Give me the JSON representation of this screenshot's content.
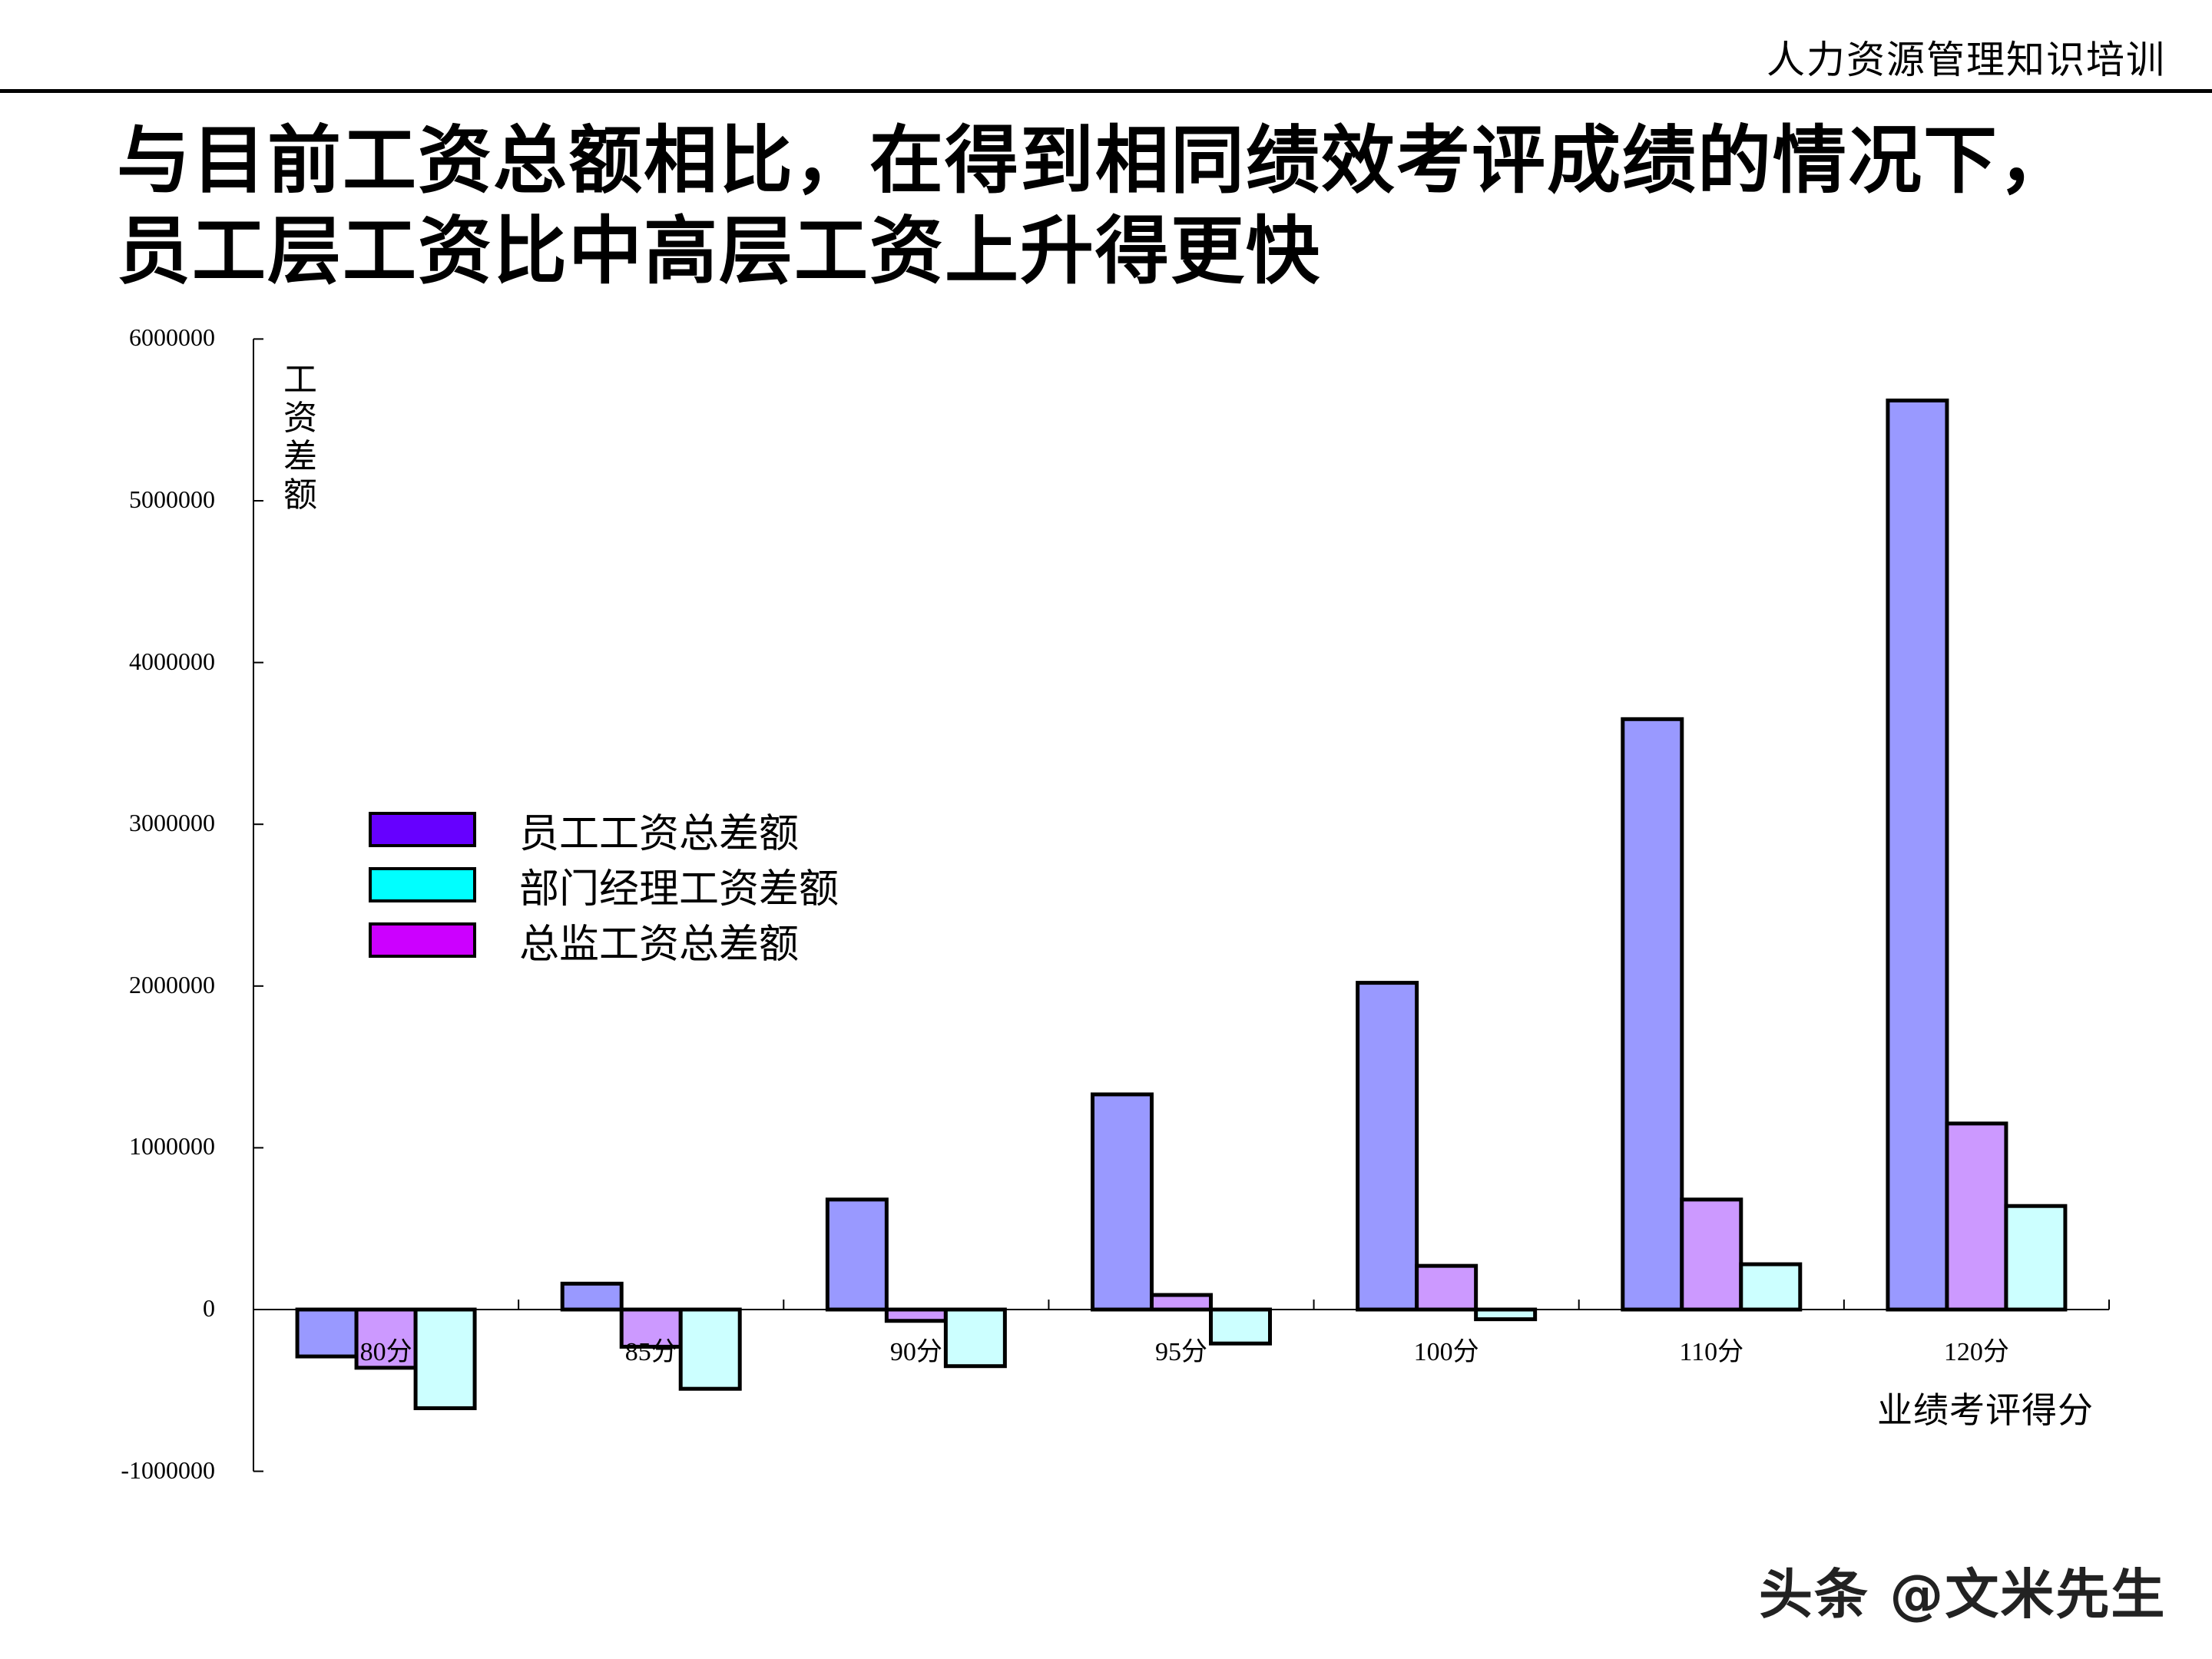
{
  "header": {
    "title": "人力资源管理知识培训"
  },
  "slide": {
    "title_line1": "与目前工资总额相比，在得到相同绩效考评成绩的情况下，",
    "title_line2": "员工层工资比中高层工资上升得更快"
  },
  "watermark": "头条 @文米先生",
  "chart_data": {
    "type": "bar",
    "title": "",
    "xlabel": "业绩考评得分",
    "ylabel": "工资差额",
    "categories": [
      "80分",
      "85分",
      "90分",
      "95分",
      "100分",
      "110分",
      "120分"
    ],
    "series": [
      {
        "name": "员工工资总差额",
        "legend_color": "#6600ff",
        "bar_color": "#9999ff",
        "values": [
          -290000,
          160000,
          680000,
          1330000,
          2020000,
          3650000,
          5620000
        ]
      },
      {
        "name": "总监工资总差额",
        "legend_color": "#cc00ff",
        "bar_color": "#cc99ff",
        "values": [
          -360000,
          -230000,
          -70000,
          90000,
          270000,
          680000,
          1150000
        ]
      },
      {
        "name": "部门经理工资差额",
        "legend_color": "#00ffff",
        "bar_color": "#ccffff",
        "values": [
          -610000,
          -490000,
          -350000,
          -210000,
          -60000,
          280000,
          640000
        ]
      }
    ],
    "legend_order": [
      "员工工资总差额",
      "部门经理工资差额",
      "总监工资总差额"
    ],
    "yticks": [
      "6000000",
      "5000000",
      "4000000",
      "3000000",
      "2000000",
      "1000000",
      "0",
      "-1000000"
    ],
    "ylim": [
      -1000000,
      6000000
    ],
    "grid": false,
    "legend_position": "upper-left inside"
  },
  "legend": [
    {
      "label": "员工工资总差额",
      "color": "#6600ff"
    },
    {
      "label": "部门经理工资差额",
      "color": "#00ffff"
    },
    {
      "label": "总监工资总差额",
      "color": "#cc00ff"
    }
  ]
}
